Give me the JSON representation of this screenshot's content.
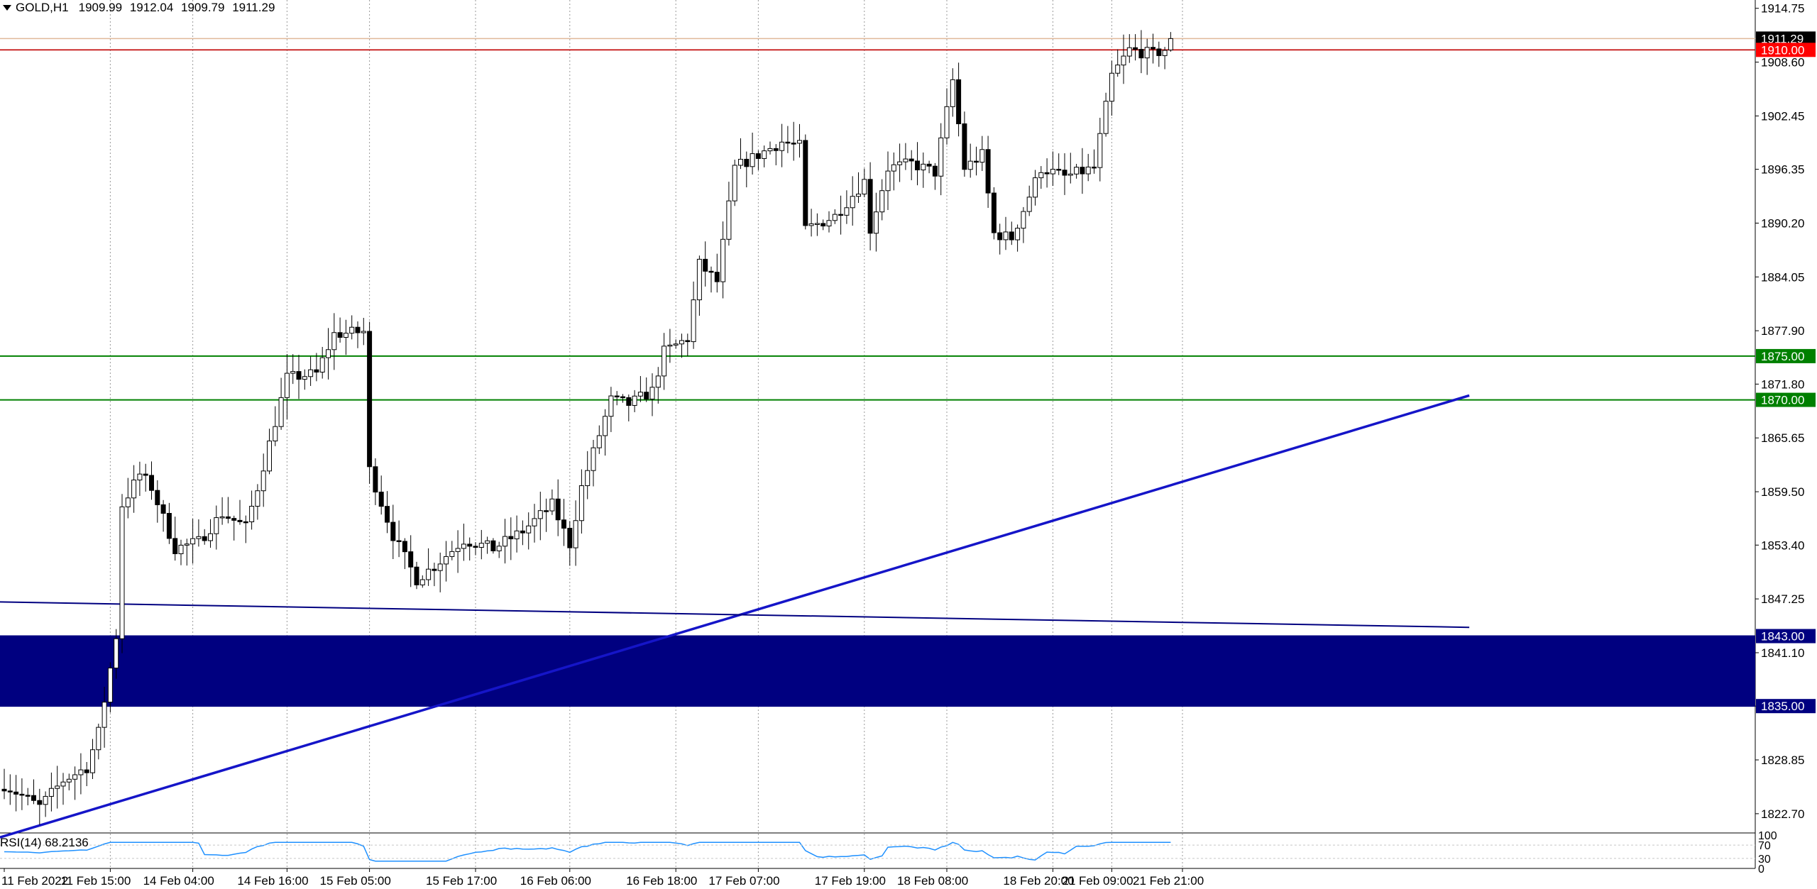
{
  "header": {
    "symbol": "GOLD,H1",
    "open": "1909.99",
    "high": "1912.04",
    "low": "1909.79",
    "close": "1911.29"
  },
  "price_axis": {
    "ticks": [
      "1914.75",
      "1908.60",
      "1902.45",
      "1896.35",
      "1890.20",
      "1884.05",
      "1877.90",
      "1871.80",
      "1865.65",
      "1859.50",
      "1853.40",
      "1847.25",
      "1841.10",
      "1835.00",
      "1828.85",
      "1822.70"
    ]
  },
  "time_axis": {
    "ticks": [
      "11 Feb 2022",
      "11 Feb 15:00",
      "14 Feb 04:00",
      "14 Feb 16:00",
      "15 Feb 05:00",
      "15 Feb 17:00",
      "16 Feb 06:00",
      "16 Feb 18:00",
      "17 Feb 07:00",
      "17 Feb 19:00",
      "18 Feb 08:00",
      "18 Feb 20:00",
      "21 Feb 09:00",
      "21 Feb 21:00"
    ]
  },
  "levels": [
    {
      "label": "1911.29",
      "price": 1911.29,
      "color": "#000000",
      "line": "#e0b89a"
    },
    {
      "label": "1910.00",
      "price": 1910.0,
      "color": "#ff0000",
      "line": "#c00000"
    },
    {
      "label": "1875.00",
      "price": 1875.0,
      "color": "#008000",
      "line": "#008000"
    },
    {
      "label": "1870.00",
      "price": 1870.0,
      "color": "#008000",
      "line": "#008000"
    },
    {
      "label": "1843.00",
      "price": 1843.0,
      "color": "#000080",
      "line": "#000080"
    },
    {
      "label": "1835.00",
      "price": 1835.0,
      "color": "#000080",
      "line": "#000080"
    }
  ],
  "zone": {
    "from": 1835.0,
    "to": 1843.0,
    "color": "#000080"
  },
  "trendlines": [
    {
      "name": "rising",
      "color": "#1515c8",
      "p1": {
        "bar": 0,
        "price": 1820.0
      },
      "p2": {
        "bar": 247,
        "price": 1870.5
      }
    },
    {
      "name": "falling",
      "color": "#000080",
      "p1": {
        "bar": 0,
        "price": 1846.9
      },
      "p2": {
        "bar": 247,
        "price": 1844.0
      }
    }
  ],
  "rsi": {
    "label": "RSI(14) 68.2136",
    "scale_labels": [
      "100",
      "70",
      "30",
      "0"
    ],
    "color": "#1e90ff"
  },
  "colors": {
    "bull_fill": "#ffffff",
    "bear_fill": "#000000",
    "candle_outline": "#000000",
    "grid": "#9a9a9a"
  },
  "chart_data": {
    "type": "candlestick",
    "title": "GOLD,H1",
    "ylim": [
      1820.5,
      1915.7
    ],
    "x_unit": "hourly bars",
    "candles": []
  }
}
